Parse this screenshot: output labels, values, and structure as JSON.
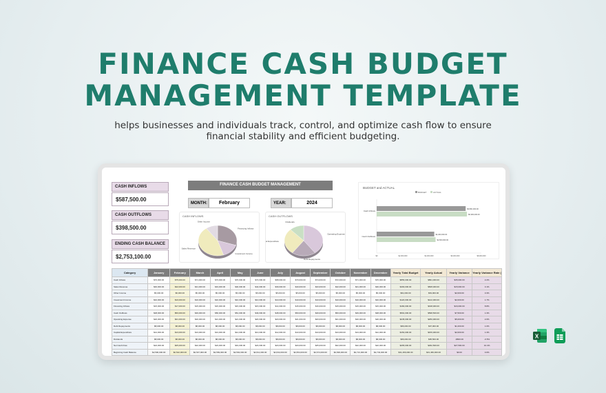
{
  "hero": {
    "title_line1": "FINANCE CASH BUDGET",
    "title_line2": "MANAGEMENT TEMPLATE",
    "subtitle_line1": "helps businesses and individuals track, control, and optimize cash flow to ensure",
    "subtitle_line2": "financial stability and efficient budgeting."
  },
  "dashboard": {
    "kpis": [
      {
        "label": "CASH INFLOWS",
        "value": "$587,500.00"
      },
      {
        "label": "CASH OUTFLOWS",
        "value": "$398,500.00"
      },
      {
        "label": "ENDING CASH BALANCE",
        "value": "$2,753,100.00"
      }
    ],
    "header": "FINANCE CASH BUDGET MANAGEMENT",
    "month_label": "MONTH:",
    "month_value": "February",
    "year_label": "YEAR:",
    "year_value": "2024"
  },
  "colors": {
    "accent": "#1f7d6c",
    "pie_gray": "#a79aa2",
    "pie_yellow": "#f0ebbd",
    "pie_purple": "#d9c8db",
    "pie_green": "#c9dfc4",
    "bar_gray": "#999999",
    "bar_green": "#c8dcc4"
  },
  "chart_data": [
    {
      "type": "pie",
      "title": "CASH INFLOWS",
      "categories": [
        "Financing Inflows",
        "Investment Income",
        "Sales Revenue",
        "Other Income"
      ],
      "values": [
        30,
        15,
        45,
        10
      ]
    },
    {
      "type": "pie",
      "title": "CASH OUTFLOWS",
      "categories": [
        "Operating Expense",
        "Debt Repayments",
        "Capital Expenditure",
        "Dividends"
      ],
      "values": [
        40,
        20,
        28,
        12
      ]
    },
    {
      "type": "bar",
      "title": "BUDGET and ACTUAL",
      "orientation": "horizontal",
      "categories": [
        "Cash Inflows",
        "Cash Outflows"
      ],
      "series": [
        {
          "name": "BUDGET",
          "values": [
            6800000,
            4400000
          ]
        },
        {
          "name": "ACTUAL",
          "values": [
            6900000,
            4500000
          ]
        }
      ],
      "xlim": [
        0,
        8000000
      ]
    }
  ],
  "table": {
    "headers": [
      "Category",
      "January",
      "February",
      "March",
      "April",
      "May",
      "June",
      "July",
      "August",
      "September",
      "October",
      "November",
      "December",
      "Yearly Total Budget",
      "Yearly Actual",
      "Yearly Variance",
      "Yearly Variance Rate (%)"
    ],
    "rows": [
      [
        "Cash Inflows",
        "$70,000.00",
        "$75,000.00",
        "$71,000.00",
        "$73,000.00",
        "$70,000.00",
        "$72,000.00",
        "$68,000.00",
        "$70,000.00",
        "$74,000.00",
        "$72,000.00",
        "$71,000.00",
        "$70,000.00",
        "$856,000.00",
        "$891,000.00",
        "$35,000.00",
        "2.2%"
      ],
      [
        "Sales Revenue",
        "$40,000.00",
        "$42,000.00",
        "$41,000.00",
        "$43,000.00",
        "$40,000.00",
        "$42,000.00",
        "$39,000.00",
        "$40,000.00",
        "$43,000.00",
        "$42,000.00",
        "$41,000.00",
        "$40,000.00",
        "$493,000.00",
        "$508,000.00",
        "$15,000.00",
        "3.1%"
      ],
      [
        "Other Income",
        "$5,000.00",
        "$6,000.00",
        "$5,000.00",
        "$5,000.00",
        "$5,000.00",
        "$5,000.00",
        "$5,000.00",
        "$5,000.00",
        "$5,000.00",
        "$5,000.00",
        "$5,000.00",
        "$5,000.00",
        "$61,000.00",
        "$63,000.00",
        "$2,000.00",
        "3.3%"
      ],
      [
        "Investment Income",
        "$10,000.00",
        "$10,000.00",
        "$10,000.00",
        "$10,000.00",
        "$10,000.00",
        "$10,000.00",
        "$10,000.00",
        "$10,000.00",
        "$10,000.00",
        "$10,000.00",
        "$10,000.00",
        "$10,000.00",
        "$120,000.00",
        "$122,000.00",
        "$2,000.00",
        "1.7%"
      ],
      [
        "Financing Inflows",
        "$15,000.00",
        "$17,000.00",
        "$15,000.00",
        "$15,000.00",
        "$15,000.00",
        "$15,000.00",
        "$14,000.00",
        "$15,000.00",
        "$16,000.00",
        "$15,000.00",
        "$15,000.00",
        "$15,000.00",
        "$182,000.00",
        "$198,000.00",
        "$16,000.00",
        "8.8%"
      ],
      [
        "Cash Outflows",
        "$48,000.00",
        "$50,000.00",
        "$49,000.00",
        "$50,000.00",
        "$51,000.00",
        "$49,000.00",
        "$48,000.00",
        "$50,000.00",
        "$49,000.00",
        "$50,000.00",
        "$49,000.00",
        "$48,000.00",
        "$591,000.00",
        "$598,500.00",
        "$7,500.00",
        "1.3%"
      ],
      [
        "Operating Expense",
        "$20,000.00",
        "$21,000.00",
        "$20,000.00",
        "$21,000.00",
        "$21,000.00",
        "$20,000.00",
        "$20,000.00",
        "$21,000.00",
        "$20,000.00",
        "$21,000.00",
        "$20,000.00",
        "$20,000.00",
        "$245,000.00",
        "$250,000.00",
        "$5,000.00",
        "2.0%"
      ],
      [
        "Debt Repayments",
        "$8,000.00",
        "$8,000.00",
        "$8,000.00",
        "$8,000.00",
        "$8,000.00",
        "$8,000.00",
        "$8,000.00",
        "$8,000.00",
        "$8,000.00",
        "$8,000.00",
        "$8,000.00",
        "$8,000.00",
        "$96,000.00",
        "$97,000.00",
        "$1,000.00",
        "1.0%"
      ],
      [
        "Capital Expenditure",
        "$12,000.00",
        "$13,000.00",
        "$13,000.00",
        "$13,000.00",
        "$14,000.00",
        "$13,000.00",
        "$12,000.00",
        "$13,000.00",
        "$13,000.00",
        "$13,000.00",
        "$13,000.00",
        "$12,000.00",
        "$154,000.00",
        "$156,000.00",
        "$2,000.00",
        "1.3%"
      ],
      [
        "Dividends",
        "$8,000.00",
        "$8,000.00",
        "$8,000.00",
        "$8,000.00",
        "$8,000.00",
        "$8,000.00",
        "$8,000.00",
        "$8,000.00",
        "$8,000.00",
        "$8,000.00",
        "$8,000.00",
        "$8,000.00",
        "$96,000.00",
        "$95,500.00",
        "-$500.00",
        "-0.5%"
      ],
      [
        "Net Cash Flow",
        "$22,000.00",
        "$25,000.00",
        "$22,000.00",
        "$23,000.00",
        "$19,000.00",
        "$23,000.00",
        "$20,000.00",
        "$20,000.00",
        "$25,000.00",
        "$22,000.00",
        "$22,000.00",
        "$22,000.00",
        "$265,000.00",
        "$292,500.00",
        "$27,500.00",
        "10.4%"
      ],
      [
        "Beginning Cash Balance",
        "$2,500,000.00",
        "$2,522,000.00",
        "$2,547,000.00",
        "$2,569,000.00",
        "$2,592,000.00",
        "$2,611,000.00",
        "$2,634,000.00",
        "$2,654,000.00",
        "$2,674,000.00",
        "$2,699,000.00",
        "$2,721,000.00",
        "$2,743,000.00",
        "$31,466,000.00",
        "$31,466,000.00",
        "$0.00",
        "0.0%"
      ],
      [
        "Ending Cash Balance",
        "$2,522,000.00",
        "$2,547,000.00",
        "$2,569,000.00",
        "$2,592,000.00",
        "$2,611,000.00",
        "$2,634,000.00",
        "$2,654,000.00",
        "$2,674,000.00",
        "$2,699,000.00",
        "$2,721,000.00",
        "$2,743,000.00",
        "$2,765,000.00",
        "$31,731,000.00",
        "$31,758,500.00",
        "$27,500.00",
        "0.1%"
      ]
    ]
  },
  "app_icons": [
    "excel-icon",
    "google-sheets-icon"
  ]
}
